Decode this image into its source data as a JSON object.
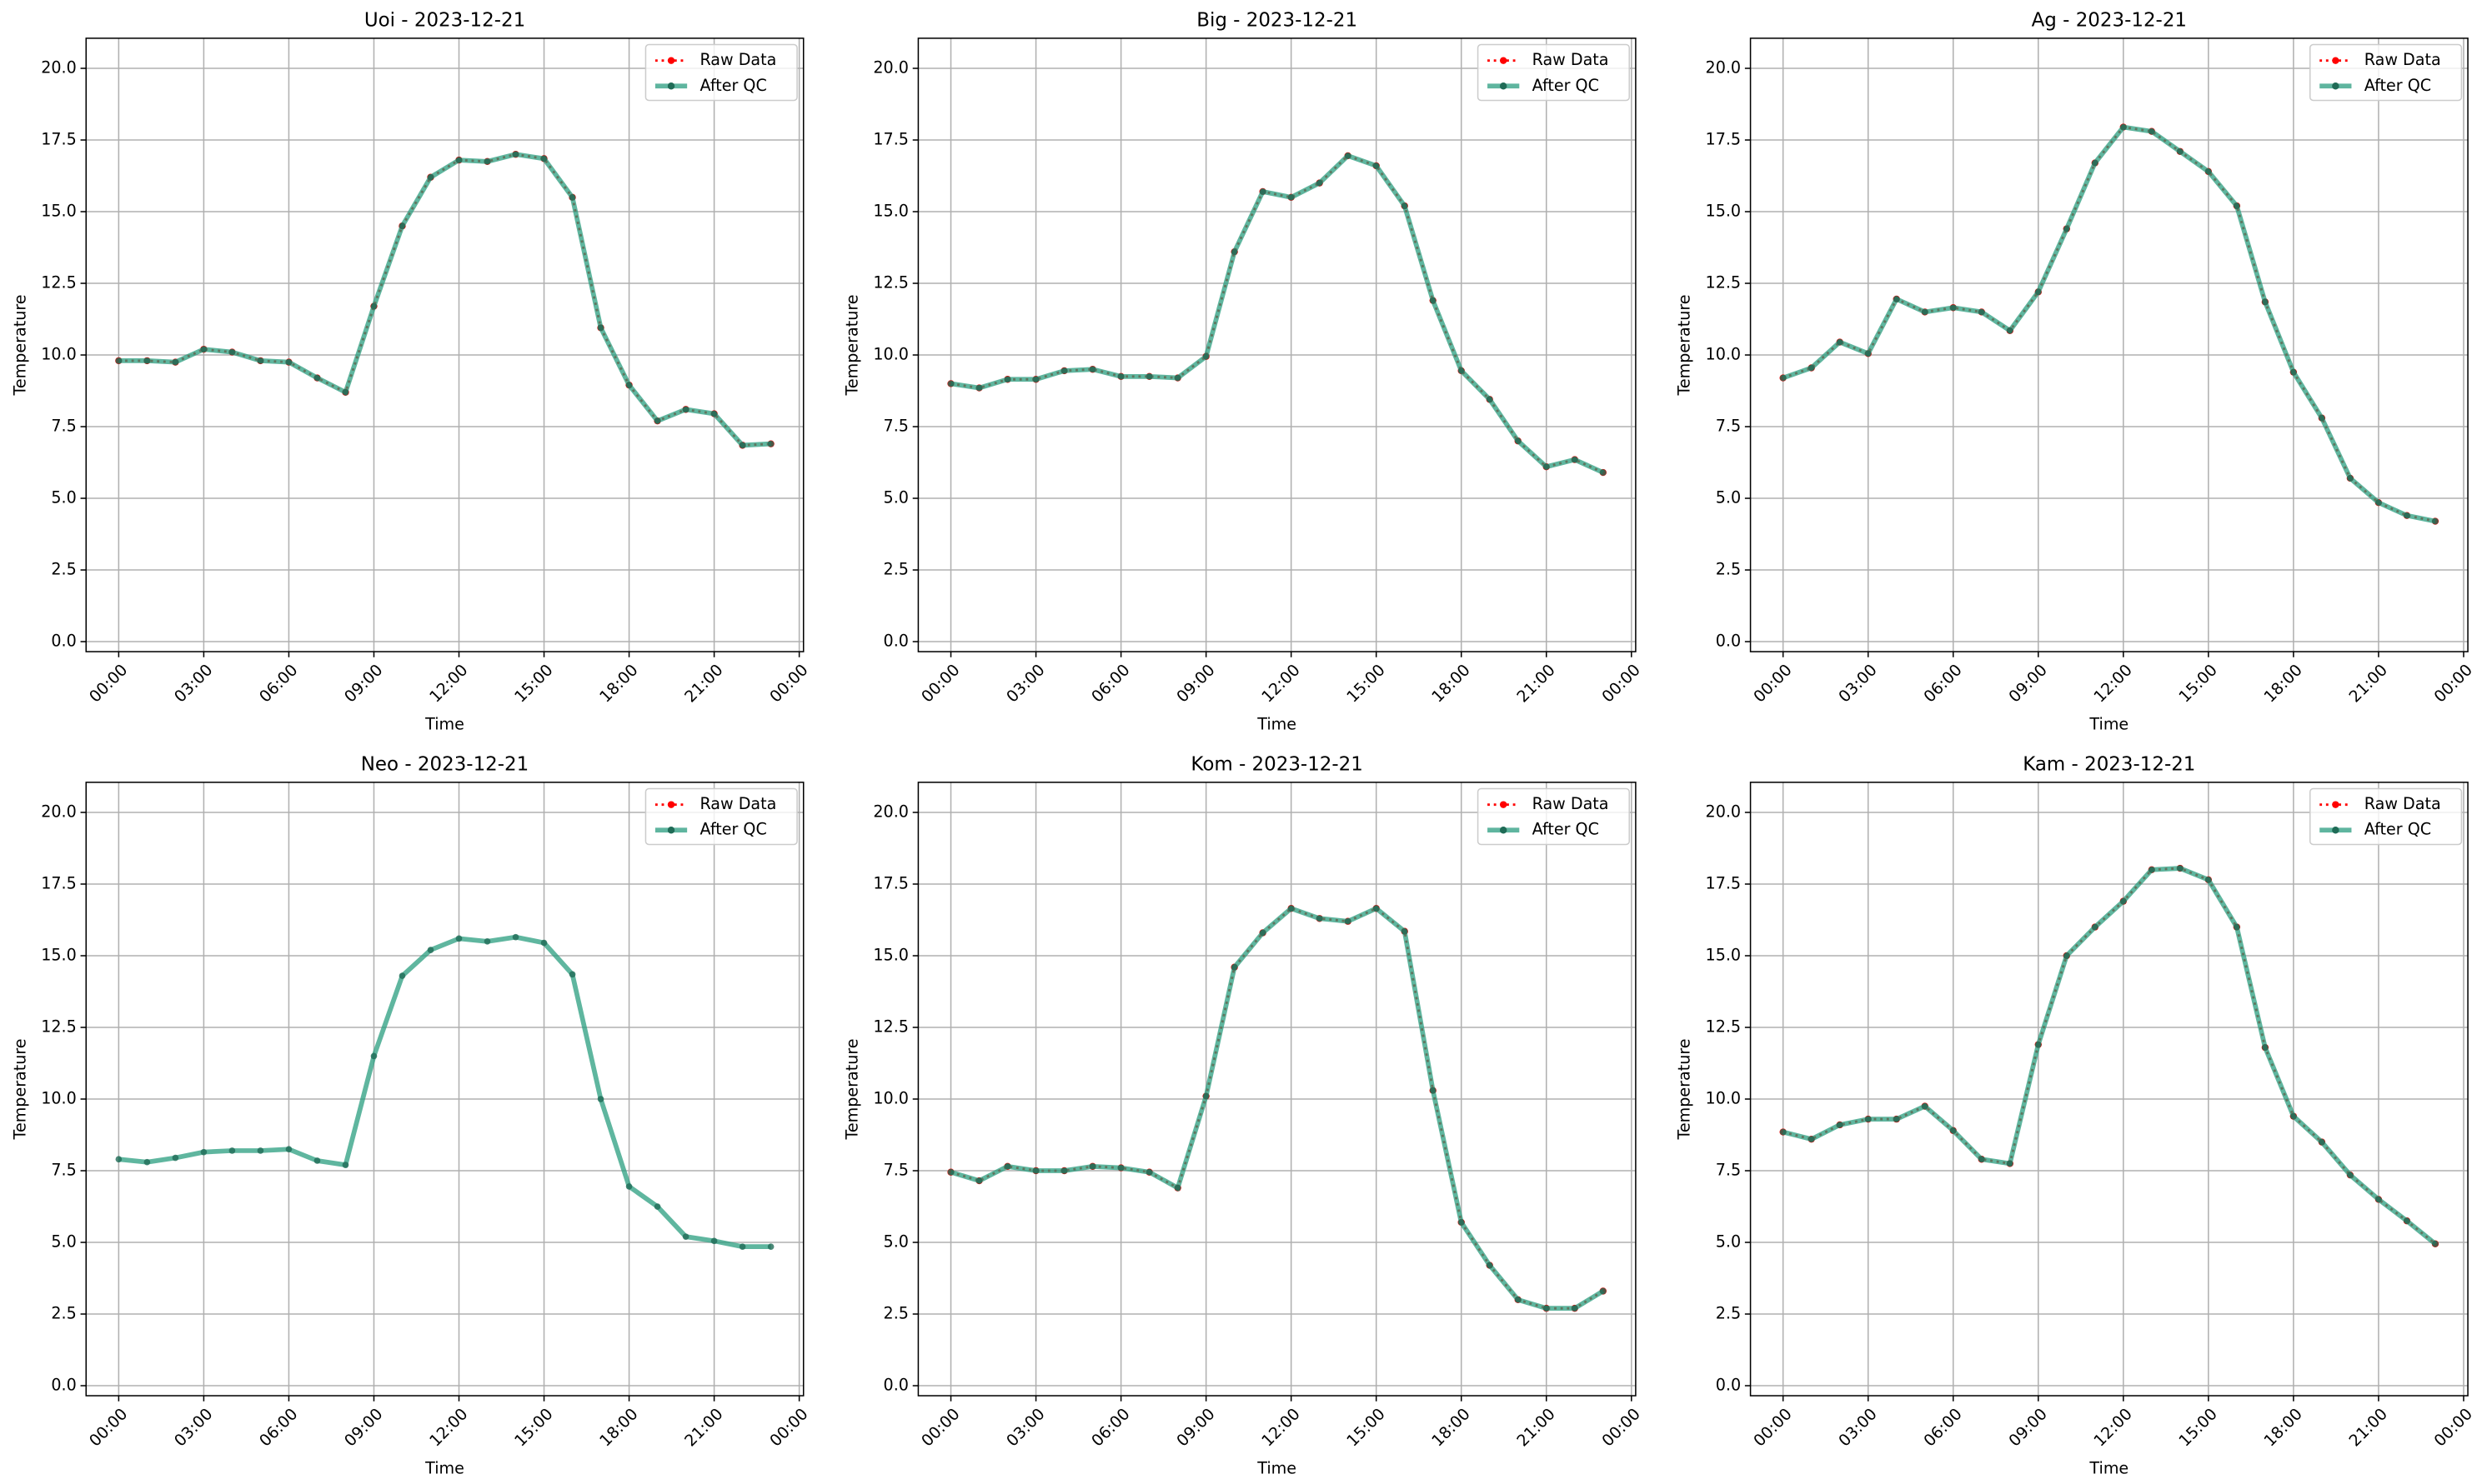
{
  "chart_data": [
    {
      "type": "line",
      "title": "Uoi - 2023-12-21",
      "xlabel": "Time",
      "ylabel": "Temperature",
      "x": [
        0,
        1,
        2,
        3,
        4,
        5,
        6,
        7,
        8,
        9,
        10,
        11,
        12,
        13,
        14,
        15,
        16,
        17,
        18,
        19,
        20,
        21,
        22,
        23
      ],
      "xlim": [
        -1.15,
        24.15
      ],
      "xticks": [
        {
          "value": 0,
          "label": "00:00"
        },
        {
          "value": 3,
          "label": "03:00"
        },
        {
          "value": 6,
          "label": "06:00"
        },
        {
          "value": 9,
          "label": "09:00"
        },
        {
          "value": 12,
          "label": "12:00"
        },
        {
          "value": 15,
          "label": "15:00"
        },
        {
          "value": 18,
          "label": "18:00"
        },
        {
          "value": 21,
          "label": "21:00"
        },
        {
          "value": 24,
          "label": "00:00"
        }
      ],
      "ylim": [
        -0.35,
        21.05
      ],
      "yticks": [
        {
          "value": 0,
          "label": "0.0"
        },
        2.5,
        {
          "value": 5,
          "label": "5.0"
        },
        7.5,
        {
          "value": 10,
          "label": "10.0"
        },
        12.5,
        {
          "value": 15,
          "label": "15.0"
        },
        17.5,
        {
          "value": 20,
          "label": "20.0"
        }
      ],
      "grid": true,
      "legend": "upper right",
      "series": [
        {
          "name": "Raw Data",
          "color": "#ff0000",
          "values": [
            9.8,
            9.8,
            9.75,
            10.2,
            10.1,
            9.8,
            9.75,
            9.2,
            8.7,
            11.7,
            14.5,
            16.2,
            16.8,
            16.75,
            17.0,
            16.85,
            15.5,
            10.95,
            8.95,
            7.7,
            8.1,
            7.95,
            6.85,
            6.9
          ]
        },
        {
          "name": "After QC",
          "color": "#2a9d7f",
          "values": [
            9.8,
            9.8,
            9.75,
            10.2,
            10.1,
            9.8,
            9.75,
            9.2,
            8.7,
            11.7,
            14.5,
            16.2,
            16.8,
            16.75,
            17.0,
            16.85,
            15.5,
            10.95,
            8.95,
            7.7,
            8.1,
            7.95,
            6.85,
            6.9
          ]
        }
      ]
    },
    {
      "type": "line",
      "title": "Big - 2023-12-21",
      "xlabel": "Time",
      "ylabel": "Temperature",
      "x": [
        0,
        1,
        2,
        3,
        4,
        5,
        6,
        7,
        8,
        9,
        10,
        11,
        12,
        13,
        14,
        15,
        16,
        17,
        18,
        19,
        20,
        21,
        22,
        23
      ],
      "xlim": [
        -1.15,
        24.15
      ],
      "xticks": [
        {
          "value": 0,
          "label": "00:00"
        },
        {
          "value": 3,
          "label": "03:00"
        },
        {
          "value": 6,
          "label": "06:00"
        },
        {
          "value": 9,
          "label": "09:00"
        },
        {
          "value": 12,
          "label": "12:00"
        },
        {
          "value": 15,
          "label": "15:00"
        },
        {
          "value": 18,
          "label": "18:00"
        },
        {
          "value": 21,
          "label": "21:00"
        },
        {
          "value": 24,
          "label": "00:00"
        }
      ],
      "ylim": [
        -0.35,
        21.05
      ],
      "yticks": [
        {
          "value": 0,
          "label": "0.0"
        },
        2.5,
        {
          "value": 5,
          "label": "5.0"
        },
        7.5,
        {
          "value": 10,
          "label": "10.0"
        },
        12.5,
        {
          "value": 15,
          "label": "15.0"
        },
        17.5,
        {
          "value": 20,
          "label": "20.0"
        }
      ],
      "grid": true,
      "legend": "upper right",
      "series": [
        {
          "name": "Raw Data",
          "color": "#ff0000",
          "values": [
            9.0,
            8.85,
            9.15,
            9.15,
            9.45,
            9.5,
            9.25,
            9.25,
            9.2,
            9.95,
            13.6,
            15.7,
            15.5,
            16.0,
            16.95,
            16.6,
            15.2,
            11.9,
            9.45,
            8.45,
            7.0,
            6.1,
            6.35,
            5.9
          ]
        },
        {
          "name": "After QC",
          "color": "#2a9d7f",
          "values": [
            9.0,
            8.85,
            9.15,
            9.15,
            9.45,
            9.5,
            9.25,
            9.25,
            9.2,
            9.95,
            13.6,
            15.7,
            15.5,
            16.0,
            16.95,
            16.6,
            15.2,
            11.9,
            9.45,
            8.45,
            7.0,
            6.1,
            6.35,
            5.9
          ]
        }
      ]
    },
    {
      "type": "line",
      "title": "Ag - 2023-12-21",
      "xlabel": "Time",
      "ylabel": "Temperature",
      "x": [
        0,
        1,
        2,
        3,
        4,
        5,
        6,
        7,
        8,
        9,
        10,
        11,
        12,
        13,
        14,
        15,
        16,
        17,
        18,
        19,
        20,
        21,
        22,
        23
      ],
      "xlim": [
        -1.15,
        24.15
      ],
      "xticks": [
        {
          "value": 0,
          "label": "00:00"
        },
        {
          "value": 3,
          "label": "03:00"
        },
        {
          "value": 6,
          "label": "06:00"
        },
        {
          "value": 9,
          "label": "09:00"
        },
        {
          "value": 12,
          "label": "12:00"
        },
        {
          "value": 15,
          "label": "15:00"
        },
        {
          "value": 18,
          "label": "18:00"
        },
        {
          "value": 21,
          "label": "21:00"
        },
        {
          "value": 24,
          "label": "00:00"
        }
      ],
      "ylim": [
        -0.35,
        21.05
      ],
      "yticks": [
        {
          "value": 0,
          "label": "0.0"
        },
        2.5,
        {
          "value": 5,
          "label": "5.0"
        },
        7.5,
        {
          "value": 10,
          "label": "10.0"
        },
        12.5,
        {
          "value": 15,
          "label": "15.0"
        },
        17.5,
        {
          "value": 20,
          "label": "20.0"
        }
      ],
      "grid": true,
      "legend": "upper right",
      "series": [
        {
          "name": "Raw Data",
          "color": "#ff0000",
          "values": [
            9.2,
            9.55,
            10.45,
            10.05,
            11.95,
            11.5,
            11.65,
            11.5,
            10.85,
            12.2,
            14.4,
            16.7,
            17.95,
            17.8,
            17.1,
            16.4,
            15.2,
            11.85,
            9.4,
            7.8,
            5.7,
            4.85,
            4.4,
            4.2
          ]
        },
        {
          "name": "After QC",
          "color": "#2a9d7f",
          "values": [
            9.2,
            9.55,
            10.45,
            10.05,
            11.95,
            11.5,
            11.65,
            11.5,
            10.85,
            12.2,
            14.4,
            16.7,
            17.95,
            17.8,
            17.1,
            16.4,
            15.2,
            11.85,
            9.4,
            7.8,
            5.7,
            4.85,
            4.4,
            4.2
          ]
        }
      ]
    },
    {
      "type": "line",
      "title": "Neo - 2023-12-21",
      "xlabel": "Time",
      "ylabel": "Temperature",
      "x": [
        0,
        1,
        2,
        3,
        4,
        5,
        6,
        7,
        8,
        9,
        10,
        11,
        12,
        13,
        14,
        15,
        16,
        17,
        18,
        19,
        20,
        21,
        22,
        23
      ],
      "xlim": [
        -1.15,
        24.15
      ],
      "xticks": [
        {
          "value": 0,
          "label": "00:00"
        },
        {
          "value": 3,
          "label": "03:00"
        },
        {
          "value": 6,
          "label": "06:00"
        },
        {
          "value": 9,
          "label": "09:00"
        },
        {
          "value": 12,
          "label": "12:00"
        },
        {
          "value": 15,
          "label": "15:00"
        },
        {
          "value": 18,
          "label": "18:00"
        },
        {
          "value": 21,
          "label": "21:00"
        },
        {
          "value": 24,
          "label": "00:00"
        }
      ],
      "ylim": [
        -0.35,
        21.05
      ],
      "yticks": [
        {
          "value": 0,
          "label": "0.0"
        },
        2.5,
        {
          "value": 5,
          "label": "5.0"
        },
        7.5,
        {
          "value": 10,
          "label": "10.0"
        },
        12.5,
        {
          "value": 15,
          "label": "15.0"
        },
        17.5,
        {
          "value": 20,
          "label": "20.0"
        }
      ],
      "grid": true,
      "legend": "upper right",
      "series": [
        {
          "name": "Raw Data",
          "color": "#ff0000",
          "values": [
            null,
            null,
            null,
            null,
            null,
            null,
            null,
            null,
            null,
            null,
            null,
            null,
            null,
            null,
            null,
            null,
            null,
            null,
            null,
            null,
            null,
            null,
            null,
            null
          ]
        },
        {
          "name": "After QC",
          "color": "#2a9d7f",
          "values": [
            7.9,
            7.8,
            7.95,
            8.15,
            8.2,
            8.2,
            8.25,
            7.85,
            7.7,
            11.5,
            14.3,
            15.2,
            15.6,
            15.5,
            15.65,
            15.45,
            14.35,
            10.0,
            6.95,
            6.25,
            5.2,
            5.05,
            4.85,
            4.85
          ]
        }
      ]
    },
    {
      "type": "line",
      "title": "Kom - 2023-12-21",
      "xlabel": "Time",
      "ylabel": "Temperature",
      "x": [
        0,
        1,
        2,
        3,
        4,
        5,
        6,
        7,
        8,
        9,
        10,
        11,
        12,
        13,
        14,
        15,
        16,
        17,
        18,
        19,
        20,
        21,
        22,
        23
      ],
      "xlim": [
        -1.15,
        24.15
      ],
      "xticks": [
        {
          "value": 0,
          "label": "00:00"
        },
        {
          "value": 3,
          "label": "03:00"
        },
        {
          "value": 6,
          "label": "06:00"
        },
        {
          "value": 9,
          "label": "09:00"
        },
        {
          "value": 12,
          "label": "12:00"
        },
        {
          "value": 15,
          "label": "15:00"
        },
        {
          "value": 18,
          "label": "18:00"
        },
        {
          "value": 21,
          "label": "21:00"
        },
        {
          "value": 24,
          "label": "00:00"
        }
      ],
      "ylim": [
        -0.35,
        21.05
      ],
      "yticks": [
        {
          "value": 0,
          "label": "0.0"
        },
        2.5,
        {
          "value": 5,
          "label": "5.0"
        },
        7.5,
        {
          "value": 10,
          "label": "10.0"
        },
        12.5,
        {
          "value": 15,
          "label": "15.0"
        },
        17.5,
        {
          "value": 20,
          "label": "20.0"
        }
      ],
      "grid": true,
      "legend": "upper right",
      "series": [
        {
          "name": "Raw Data",
          "color": "#ff0000",
          "values": [
            7.45,
            7.15,
            7.65,
            7.5,
            7.5,
            7.65,
            7.6,
            7.45,
            6.9,
            10.1,
            14.6,
            15.8,
            16.65,
            16.3,
            16.2,
            16.65,
            15.85,
            10.3,
            5.7,
            4.2,
            3.0,
            2.7,
            2.7,
            3.3
          ]
        },
        {
          "name": "After QC",
          "color": "#2a9d7f",
          "values": [
            7.45,
            7.15,
            7.65,
            7.5,
            7.5,
            7.65,
            7.6,
            7.45,
            6.9,
            10.1,
            14.6,
            15.8,
            16.65,
            16.3,
            16.2,
            16.65,
            15.85,
            10.3,
            5.7,
            4.2,
            3.0,
            2.7,
            2.7,
            3.3
          ]
        }
      ]
    },
    {
      "type": "line",
      "title": "Kam - 2023-12-21",
      "xlabel": "Time",
      "ylabel": "Temperature",
      "x": [
        0,
        1,
        2,
        3,
        4,
        5,
        6,
        7,
        8,
        9,
        10,
        11,
        12,
        13,
        14,
        15,
        16,
        17,
        18,
        19,
        20,
        21,
        22,
        23
      ],
      "xlim": [
        -1.15,
        24.15
      ],
      "xticks": [
        {
          "value": 0,
          "label": "00:00"
        },
        {
          "value": 3,
          "label": "03:00"
        },
        {
          "value": 6,
          "label": "06:00"
        },
        {
          "value": 9,
          "label": "09:00"
        },
        {
          "value": 12,
          "label": "12:00"
        },
        {
          "value": 15,
          "label": "15:00"
        },
        {
          "value": 18,
          "label": "18:00"
        },
        {
          "value": 21,
          "label": "21:00"
        },
        {
          "value": 24,
          "label": "00:00"
        }
      ],
      "ylim": [
        -0.35,
        21.05
      ],
      "yticks": [
        {
          "value": 0,
          "label": "0.0"
        },
        2.5,
        {
          "value": 5,
          "label": "5.0"
        },
        7.5,
        {
          "value": 10,
          "label": "10.0"
        },
        12.5,
        {
          "value": 15,
          "label": "15.0"
        },
        17.5,
        {
          "value": 20,
          "label": "20.0"
        }
      ],
      "grid": true,
      "legend": "upper right",
      "series": [
        {
          "name": "Raw Data",
          "color": "#ff0000",
          "values": [
            8.85,
            8.6,
            9.1,
            9.3,
            9.3,
            9.75,
            8.9,
            7.9,
            7.75,
            11.9,
            15.0,
            16.0,
            16.9,
            18.0,
            18.05,
            17.65,
            16.0,
            11.8,
            9.4,
            8.5,
            7.35,
            6.5,
            5.75,
            4.95
          ]
        },
        {
          "name": "After QC",
          "color": "#2a9d7f",
          "values": [
            8.85,
            8.6,
            9.1,
            9.3,
            9.3,
            9.75,
            8.9,
            7.9,
            7.75,
            11.9,
            15.0,
            16.0,
            16.9,
            18.0,
            18.05,
            17.65,
            16.0,
            11.8,
            9.4,
            8.5,
            7.35,
            6.5,
            5.75,
            4.95
          ]
        }
      ]
    }
  ]
}
